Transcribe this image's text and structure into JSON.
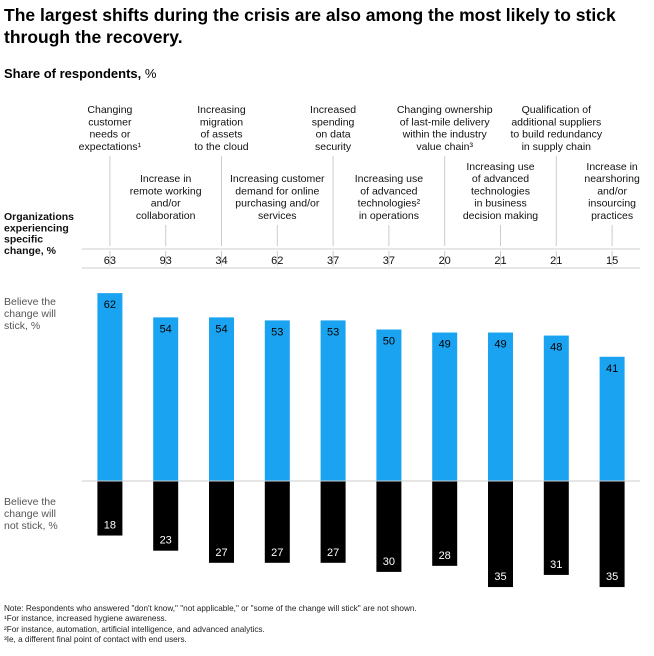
{
  "title": "The largest shifts during the crisis are also among the most likely to stick through the recovery.",
  "subtitle": "Share of respondents,",
  "subtitle_unit": "%",
  "colors": {
    "stick": "#1aa3f0",
    "not_stick": "#000000",
    "grid": "#cccccc"
  },
  "row_labels": {
    "organizations": [
      "Organizations",
      "experiencing",
      "specific",
      "change, %"
    ],
    "stick": [
      "Believe the",
      "change will",
      "stick, %"
    ],
    "not_stick": [
      "Believe the",
      "change will",
      "not stick, %"
    ]
  },
  "chart_data": {
    "type": "bar",
    "categories": [
      [
        "Changing",
        "customer",
        "needs or",
        "expectations¹"
      ],
      [
        "Increase in",
        "remote working",
        "and/or",
        "collaboration"
      ],
      [
        "Increasing",
        "migration",
        "of assets",
        "to the cloud"
      ],
      [
        "Increasing customer",
        "demand for online",
        "purchasing and/or",
        "services"
      ],
      [
        "Increased",
        "spending",
        "on data",
        "security"
      ],
      [
        "Increasing use",
        "of advanced",
        "technologies²",
        "in operations"
      ],
      [
        "Changing ownership",
        "of last-mile delivery",
        "within the industry",
        "value chain³"
      ],
      [
        "Increasing use",
        "of advanced",
        "technologies",
        "in business",
        "decision making"
      ],
      [
        "Qualification of",
        "additional suppliers",
        "to build redundancy",
        "in supply chain"
      ],
      [
        "Increase in",
        "nearshoring",
        "and/or",
        "insourcing",
        "practices"
      ]
    ],
    "organizations_experiencing": [
      63,
      93,
      34,
      62,
      37,
      37,
      20,
      21,
      21,
      15
    ],
    "series": [
      {
        "name": "Believe the change will stick, %",
        "values": [
          62,
          54,
          54,
          53,
          53,
          50,
          49,
          49,
          48,
          41
        ]
      },
      {
        "name": "Believe the change will not stick, %",
        "values": [
          18,
          23,
          27,
          27,
          27,
          30,
          28,
          35,
          31,
          35
        ]
      }
    ]
  },
  "notes": [
    "Note: Respondents who answered \"don't know,\" \"not applicable,\" or \"some of the change will stick\" are not shown.",
    "¹For instance, increased hygiene awareness.",
    "²For instance, automation, artificial intelligence, and advanced analytics.",
    "³Ie, a different final point of contact with end users."
  ]
}
